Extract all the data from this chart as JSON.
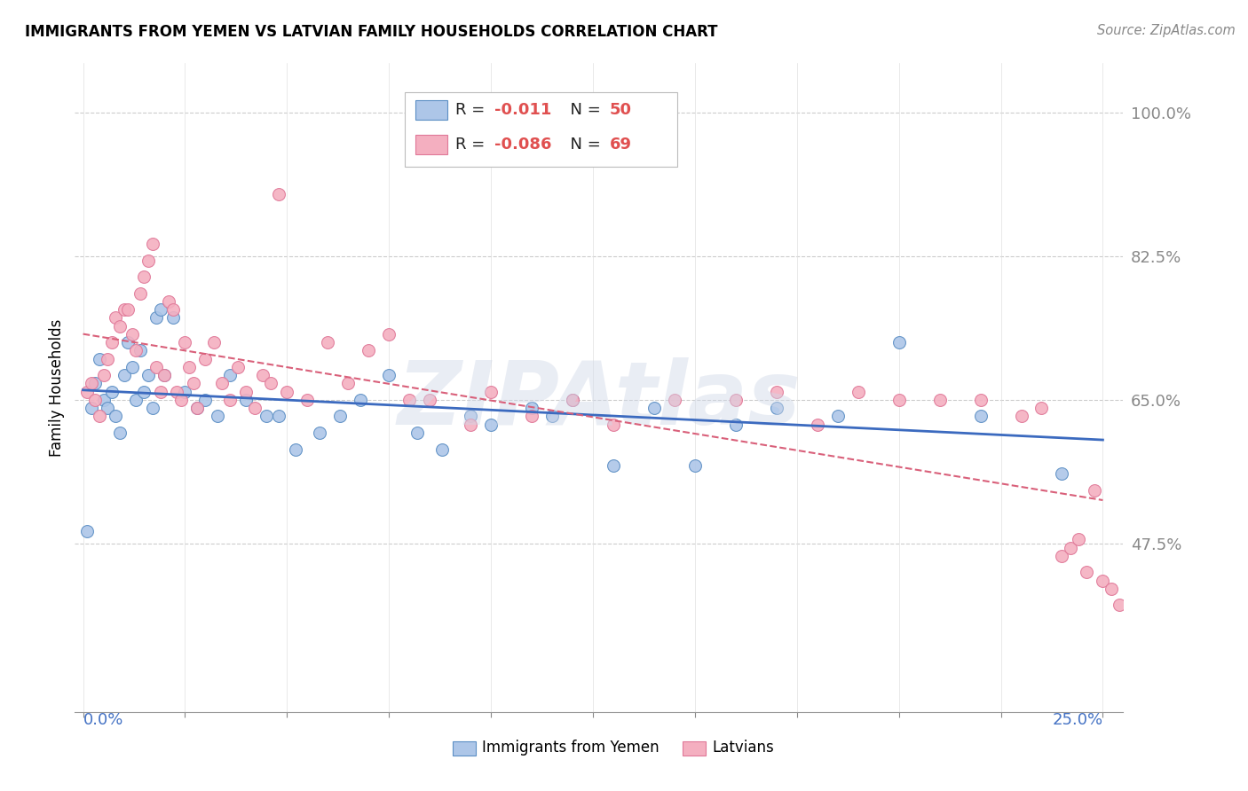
{
  "title": "IMMIGRANTS FROM YEMEN VS LATVIAN FAMILY HOUSEHOLDS CORRELATION CHART",
  "source": "Source: ZipAtlas.com",
  "ylabel": "Family Households",
  "y_ticks": [
    0.475,
    0.65,
    0.825,
    1.0
  ],
  "y_tick_labels": [
    "47.5%",
    "65.0%",
    "82.5%",
    "100.0%"
  ],
  "x_ticks": [
    0.0,
    0.025,
    0.05,
    0.075,
    0.1,
    0.125,
    0.15,
    0.175,
    0.2,
    0.225,
    0.25
  ],
  "x_lim": [
    -0.002,
    0.255
  ],
  "y_lim": [
    0.27,
    1.06
  ],
  "legend_text1": "R =  -0.011   N = 50",
  "legend_text2": "R = -0.086   N = 69",
  "series1_fill": "#adc6e8",
  "series2_fill": "#f4afc0",
  "series1_edge": "#5b8ec4",
  "series2_edge": "#e07898",
  "trendline1_color": "#3b6abf",
  "trendline2_color": "#d9607a",
  "watermark": "ZIPAtlas",
  "legend_label1": "Immigrants from Yemen",
  "legend_label2": "Latvians",
  "blue_x": [
    0.001,
    0.002,
    0.003,
    0.004,
    0.005,
    0.006,
    0.007,
    0.008,
    0.009,
    0.01,
    0.011,
    0.012,
    0.013,
    0.014,
    0.015,
    0.016,
    0.017,
    0.018,
    0.019,
    0.02,
    0.022,
    0.025,
    0.028,
    0.03,
    0.033,
    0.036,
    0.04,
    0.045,
    0.048,
    0.052,
    0.058,
    0.063,
    0.068,
    0.075,
    0.082,
    0.088,
    0.095,
    0.1,
    0.11,
    0.115,
    0.12,
    0.13,
    0.14,
    0.15,
    0.16,
    0.17,
    0.185,
    0.2,
    0.22,
    0.24
  ],
  "blue_y": [
    0.49,
    0.64,
    0.67,
    0.7,
    0.65,
    0.64,
    0.66,
    0.63,
    0.61,
    0.68,
    0.72,
    0.69,
    0.65,
    0.71,
    0.66,
    0.68,
    0.64,
    0.75,
    0.76,
    0.68,
    0.75,
    0.66,
    0.64,
    0.65,
    0.63,
    0.68,
    0.65,
    0.63,
    0.63,
    0.59,
    0.61,
    0.63,
    0.65,
    0.68,
    0.61,
    0.59,
    0.63,
    0.62,
    0.64,
    0.63,
    0.65,
    0.57,
    0.64,
    0.57,
    0.62,
    0.64,
    0.63,
    0.72,
    0.63,
    0.56
  ],
  "pink_x": [
    0.001,
    0.002,
    0.003,
    0.004,
    0.005,
    0.006,
    0.007,
    0.008,
    0.009,
    0.01,
    0.011,
    0.012,
    0.013,
    0.014,
    0.015,
    0.016,
    0.017,
    0.018,
    0.019,
    0.02,
    0.021,
    0.022,
    0.023,
    0.024,
    0.025,
    0.026,
    0.027,
    0.028,
    0.03,
    0.032,
    0.034,
    0.036,
    0.038,
    0.04,
    0.042,
    0.044,
    0.046,
    0.048,
    0.05,
    0.055,
    0.06,
    0.065,
    0.07,
    0.075,
    0.08,
    0.085,
    0.095,
    0.1,
    0.11,
    0.12,
    0.13,
    0.145,
    0.16,
    0.17,
    0.18,
    0.19,
    0.2,
    0.21,
    0.22,
    0.23,
    0.235,
    0.24,
    0.242,
    0.244,
    0.246,
    0.248,
    0.25,
    0.252,
    0.254
  ],
  "pink_y": [
    0.66,
    0.67,
    0.65,
    0.63,
    0.68,
    0.7,
    0.72,
    0.75,
    0.74,
    0.76,
    0.76,
    0.73,
    0.71,
    0.78,
    0.8,
    0.82,
    0.84,
    0.69,
    0.66,
    0.68,
    0.77,
    0.76,
    0.66,
    0.65,
    0.72,
    0.69,
    0.67,
    0.64,
    0.7,
    0.72,
    0.67,
    0.65,
    0.69,
    0.66,
    0.64,
    0.68,
    0.67,
    0.9,
    0.66,
    0.65,
    0.72,
    0.67,
    0.71,
    0.73,
    0.65,
    0.65,
    0.62,
    0.66,
    0.63,
    0.65,
    0.62,
    0.65,
    0.65,
    0.66,
    0.62,
    0.66,
    0.65,
    0.65,
    0.65,
    0.63,
    0.64,
    0.46,
    0.47,
    0.48,
    0.44,
    0.54,
    0.43,
    0.42,
    0.4
  ]
}
